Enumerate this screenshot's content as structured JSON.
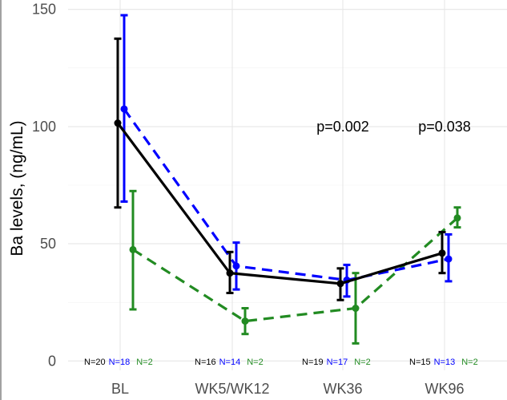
{
  "chart_data": {
    "type": "line",
    "title": "",
    "xlabel": "",
    "ylabel": "Ba levels, (ng/mL)",
    "categories": [
      "BL",
      "WK5/WK12",
      "WK36",
      "WK96"
    ],
    "ylim": [
      0,
      150
    ],
    "yticks": [
      0,
      50,
      100,
      150
    ],
    "grid": true,
    "series": [
      {
        "color": "#000000",
        "linestyle": "solid",
        "values": [
          101.5,
          37.5,
          33,
          46
        ],
        "lower": [
          65.5,
          29,
          26,
          37.5
        ],
        "upper": [
          137.5,
          46.5,
          39.5,
          55
        ],
        "n_labels": [
          "N=20",
          "N=16",
          "N=19",
          "N=15"
        ]
      },
      {
        "color": "#0000ff",
        "linestyle": "dashed",
        "values": [
          107.5,
          40.5,
          34.5,
          43.5
        ],
        "lower": [
          68,
          30.5,
          27.5,
          34
        ],
        "upper": [
          147.5,
          50.5,
          41,
          54
        ],
        "n_labels": [
          "N=18",
          "N=14",
          "N=17",
          "N=13"
        ]
      },
      {
        "color": "#228b22",
        "linestyle": "dashed",
        "values": [
          47.5,
          17,
          22.5,
          61
        ],
        "lower": [
          22,
          11.5,
          7.5,
          57
        ],
        "upper": [
          72.5,
          22.5,
          37.5,
          65.5
        ],
        "n_labels": [
          "N=2",
          "N=2",
          "N=2",
          "N=2"
        ]
      }
    ],
    "annotations": [
      {
        "text": "p=0.002",
        "category": 2,
        "y": 100
      },
      {
        "text": "p=0.038",
        "category": 3,
        "y": 100
      }
    ]
  }
}
